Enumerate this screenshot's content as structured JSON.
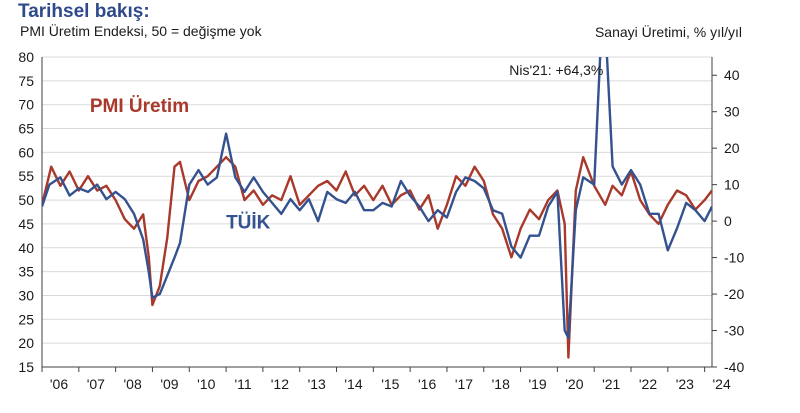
{
  "header": {
    "title": "Tarihsel bakış:",
    "subtitle": "PMI Üretim Endeksi, 50 = değişme yok",
    "right_axis_title": "Sanayi Üretimi, % yıl/yıl"
  },
  "colors": {
    "pmi": "#a8392b",
    "tuik": "#34528f",
    "grid": "#d9d9d9",
    "axis": "#404040"
  },
  "chart_data": {
    "type": "line",
    "title": "Tarihsel bakış:",
    "subtitle": "PMI Üretim Endeksi, 50 = değişme yok",
    "x_ticks": [
      "'06",
      "'07",
      "'08",
      "'09",
      "'10",
      "'11",
      "'12",
      "'13",
      "'14",
      "'15",
      "'16",
      "'17",
      "'18",
      "'19",
      "'20",
      "'21",
      "'22",
      "'23",
      "'24"
    ],
    "xlim": [
      2006.0,
      2024.2
    ],
    "left_axis": {
      "label": "PMI Üretim Endeksi, 50 = değişme yok",
      "ylim": [
        15,
        80
      ],
      "ticks": [
        80,
        75,
        70,
        65,
        60,
        55,
        50,
        45,
        40,
        35,
        30,
        25,
        20,
        15
      ]
    },
    "right_axis": {
      "label": "Sanayi Üretimi, % yıl/yıl",
      "ylim": [
        -40,
        45
      ],
      "ticks": [
        40,
        30,
        20,
        10,
        0,
        -10,
        -20,
        -30,
        -40
      ]
    },
    "grid": true,
    "annotations": [
      {
        "text": "Nis'21: +64,3%",
        "x": 2021.25,
        "y_right": 64.3
      }
    ],
    "series": [
      {
        "name": "PMI Üretim",
        "axis": "left",
        "points": [
          [
            2006.0,
            49
          ],
          [
            2006.25,
            57
          ],
          [
            2006.5,
            53
          ],
          [
            2006.75,
            56
          ],
          [
            2007.0,
            52
          ],
          [
            2007.25,
            55
          ],
          [
            2007.5,
            52
          ],
          [
            2007.75,
            53
          ],
          [
            2008.0,
            50
          ],
          [
            2008.25,
            46
          ],
          [
            2008.5,
            44
          ],
          [
            2008.75,
            47
          ],
          [
            2008.9,
            38
          ],
          [
            2009.0,
            28
          ],
          [
            2009.2,
            32
          ],
          [
            2009.4,
            42
          ],
          [
            2009.6,
            57
          ],
          [
            2009.75,
            58
          ],
          [
            2010.0,
            50
          ],
          [
            2010.25,
            54
          ],
          [
            2010.5,
            55
          ],
          [
            2010.75,
            57
          ],
          [
            2011.0,
            59
          ],
          [
            2011.25,
            57
          ],
          [
            2011.5,
            50
          ],
          [
            2011.75,
            52
          ],
          [
            2012.0,
            49
          ],
          [
            2012.25,
            51
          ],
          [
            2012.5,
            50
          ],
          [
            2012.75,
            55
          ],
          [
            2013.0,
            49
          ],
          [
            2013.25,
            51
          ],
          [
            2013.5,
            53
          ],
          [
            2013.75,
            54
          ],
          [
            2014.0,
            52
          ],
          [
            2014.25,
            56
          ],
          [
            2014.5,
            51
          ],
          [
            2014.75,
            53
          ],
          [
            2015.0,
            50
          ],
          [
            2015.25,
            53
          ],
          [
            2015.5,
            49
          ],
          [
            2015.75,
            51
          ],
          [
            2016.0,
            52
          ],
          [
            2016.25,
            48
          ],
          [
            2016.5,
            51
          ],
          [
            2016.75,
            44
          ],
          [
            2017.0,
            49
          ],
          [
            2017.25,
            55
          ],
          [
            2017.5,
            53
          ],
          [
            2017.75,
            57
          ],
          [
            2018.0,
            54
          ],
          [
            2018.25,
            47
          ],
          [
            2018.5,
            44
          ],
          [
            2018.75,
            38
          ],
          [
            2019.0,
            44
          ],
          [
            2019.25,
            48
          ],
          [
            2019.5,
            46
          ],
          [
            2019.75,
            50
          ],
          [
            2020.0,
            52
          ],
          [
            2020.2,
            45
          ],
          [
            2020.3,
            17
          ],
          [
            2020.5,
            52
          ],
          [
            2020.7,
            59
          ],
          [
            2021.0,
            53
          ],
          [
            2021.3,
            49
          ],
          [
            2021.5,
            53
          ],
          [
            2021.75,
            51
          ],
          [
            2022.0,
            56
          ],
          [
            2022.25,
            50
          ],
          [
            2022.5,
            47
          ],
          [
            2022.75,
            45
          ],
          [
            2023.0,
            49
          ],
          [
            2023.25,
            52
          ],
          [
            2023.5,
            51
          ],
          [
            2023.75,
            48
          ],
          [
            2024.0,
            50
          ],
          [
            2024.2,
            52
          ]
        ]
      },
      {
        "name": "TÜİK",
        "axis": "right",
        "points": [
          [
            2006.0,
            4
          ],
          [
            2006.2,
            10
          ],
          [
            2006.5,
            12
          ],
          [
            2006.75,
            7
          ],
          [
            2007.0,
            9
          ],
          [
            2007.25,
            8
          ],
          [
            2007.5,
            10
          ],
          [
            2007.75,
            6
          ],
          [
            2008.0,
            8
          ],
          [
            2008.25,
            6
          ],
          [
            2008.5,
            2
          ],
          [
            2008.75,
            -5
          ],
          [
            2008.9,
            -14
          ],
          [
            2009.0,
            -21
          ],
          [
            2009.2,
            -20
          ],
          [
            2009.4,
            -15
          ],
          [
            2009.6,
            -10
          ],
          [
            2009.75,
            -6
          ],
          [
            2010.0,
            10
          ],
          [
            2010.25,
            14
          ],
          [
            2010.5,
            10
          ],
          [
            2010.75,
            12
          ],
          [
            2011.0,
            24
          ],
          [
            2011.25,
            12
          ],
          [
            2011.5,
            8
          ],
          [
            2011.75,
            12
          ],
          [
            2012.0,
            8
          ],
          [
            2012.25,
            5
          ],
          [
            2012.5,
            2
          ],
          [
            2012.75,
            6
          ],
          [
            2013.0,
            3
          ],
          [
            2013.25,
            6
          ],
          [
            2013.5,
            0
          ],
          [
            2013.75,
            8
          ],
          [
            2014.0,
            6
          ],
          [
            2014.25,
            5
          ],
          [
            2014.5,
            8
          ],
          [
            2014.75,
            3
          ],
          [
            2015.0,
            3
          ],
          [
            2015.25,
            5
          ],
          [
            2015.5,
            4
          ],
          [
            2015.75,
            11
          ],
          [
            2016.0,
            7
          ],
          [
            2016.25,
            4
          ],
          [
            2016.5,
            0
          ],
          [
            2016.75,
            3
          ],
          [
            2017.0,
            1
          ],
          [
            2017.25,
            8
          ],
          [
            2017.5,
            12
          ],
          [
            2017.75,
            11
          ],
          [
            2018.0,
            9
          ],
          [
            2018.25,
            3
          ],
          [
            2018.5,
            2
          ],
          [
            2018.75,
            -7
          ],
          [
            2019.0,
            -10
          ],
          [
            2019.25,
            -4
          ],
          [
            2019.5,
            -4
          ],
          [
            2019.75,
            4
          ],
          [
            2020.0,
            8
          ],
          [
            2020.2,
            -30
          ],
          [
            2020.3,
            -32
          ],
          [
            2020.5,
            3
          ],
          [
            2020.7,
            12
          ],
          [
            2021.0,
            10
          ],
          [
            2021.25,
            64.3
          ],
          [
            2021.5,
            15
          ],
          [
            2021.75,
            10
          ],
          [
            2022.0,
            14
          ],
          [
            2022.25,
            10
          ],
          [
            2022.5,
            2
          ],
          [
            2022.75,
            2
          ],
          [
            2023.0,
            -8
          ],
          [
            2023.25,
            -2
          ],
          [
            2023.5,
            5
          ],
          [
            2023.75,
            3
          ],
          [
            2024.0,
            0
          ],
          [
            2024.2,
            4
          ]
        ]
      }
    ]
  }
}
